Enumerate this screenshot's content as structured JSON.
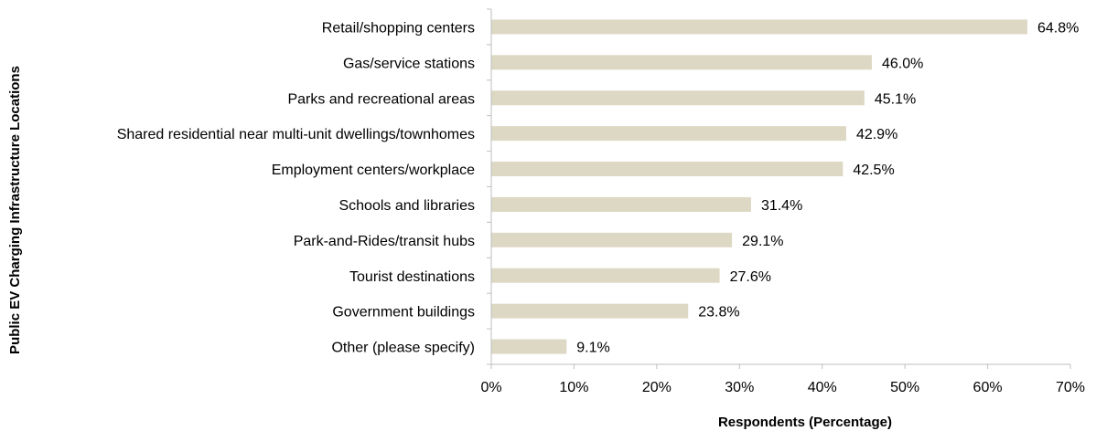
{
  "chart_data": {
    "type": "bar",
    "orientation": "horizontal",
    "categories": [
      "Retail/shopping centers",
      "Gas/service stations",
      "Parks and recreational areas",
      "Shared residential near multi-unit dwellings/townhomes",
      "Employment centers/workplace",
      "Schools and libraries",
      "Park-and-Rides/transit hubs",
      "Tourist destinations",
      "Government buildings",
      "Other (please specify)"
    ],
    "values": [
      64.8,
      46.0,
      45.1,
      42.9,
      42.5,
      31.4,
      29.1,
      27.6,
      23.8,
      9.1
    ],
    "data_labels": [
      "64.8%",
      "46.0%",
      "45.1%",
      "42.9%",
      "42.5%",
      "31.4%",
      "29.1%",
      "27.6%",
      "23.8%",
      "9.1%"
    ],
    "xlabel": "Respondents (Percentage)",
    "ylabel": "Public EV Charging Infrastructure Locations",
    "xlim": [
      0,
      70
    ],
    "xticks": [
      0,
      10,
      20,
      30,
      40,
      50,
      60,
      70
    ],
    "xtick_labels": [
      "0%",
      "10%",
      "20%",
      "30%",
      "40%",
      "50%",
      "60%",
      "70%"
    ],
    "grid": false,
    "legend": "none",
    "bar_color": "#ddd8c4"
  }
}
